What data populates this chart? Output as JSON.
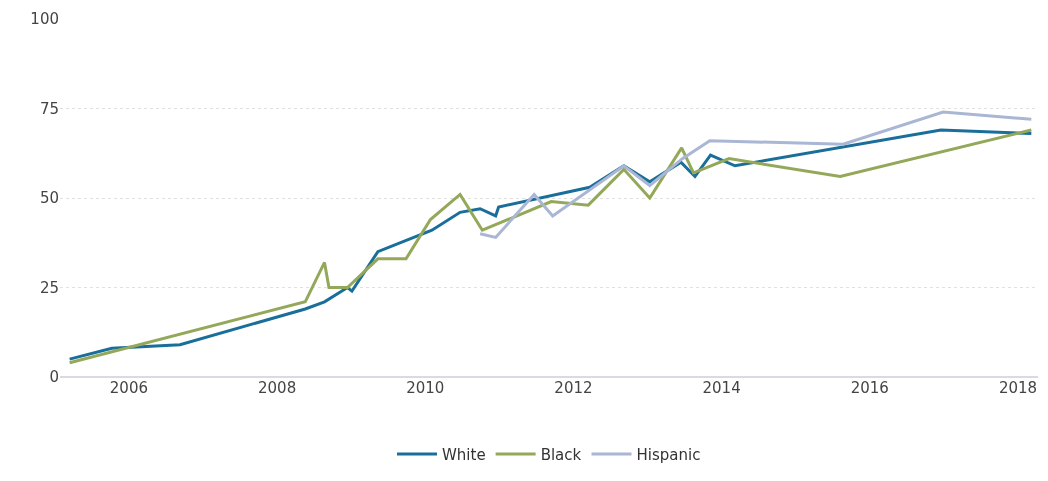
{
  "chart_data": {
    "type": "line",
    "xlim": [
      2005.07,
      2018.27
    ],
    "xticks": [
      2006,
      2008,
      2010,
      2012,
      2014,
      2016,
      2018
    ],
    "ylim": [
      0,
      100
    ],
    "yticks": [
      0,
      25,
      50,
      75,
      100
    ],
    "grid": "y",
    "legend": "bottom",
    "marker": "none",
    "line_style": "solid",
    "series": [
      {
        "name": "White",
        "color": "#1a6e9a",
        "x": [
          2005.2,
          2005.77,
          2006.69,
          2008.38,
          2008.64,
          2008.95,
          2009.01,
          2009.36,
          2010.09,
          2010.47,
          2010.74,
          2010.95,
          2010.99,
          2012.22,
          2012.68,
          2013.03,
          2013.45,
          2013.64,
          2013.85,
          2014.18,
          2016.96,
          2018.18
        ],
        "values": [
          5,
          8,
          9,
          19,
          21,
          25,
          24,
          35,
          41,
          46,
          47,
          45,
          47.5,
          53,
          59,
          54.5,
          60,
          56,
          62,
          59,
          69,
          68
        ]
      },
      {
        "name": "Black",
        "color": "#94a85a",
        "x": [
          2005.2,
          2008.38,
          2008.64,
          2008.7,
          2008.95,
          2009.36,
          2009.74,
          2010.07,
          2010.47,
          2010.77,
          2011.7,
          2012.2,
          2012.68,
          2013.03,
          2013.46,
          2013.62,
          2014.1,
          2015.6,
          2018.18
        ],
        "values": [
          4,
          21,
          32,
          25,
          25,
          33,
          33,
          44,
          51,
          41,
          49,
          48,
          58,
          50,
          64,
          57,
          61,
          56,
          69
        ]
      },
      {
        "name": "Hispanic",
        "color": "#a9b6d4",
        "x": [
          2010.74,
          2010.95,
          2011.47,
          2011.72,
          2012.68,
          2013.03,
          2013.47,
          2013.84,
          2015.64,
          2016.99,
          2018.18
        ],
        "values": [
          40,
          39,
          51,
          45,
          59,
          53.5,
          61,
          66,
          65,
          74,
          72
        ]
      }
    ]
  }
}
